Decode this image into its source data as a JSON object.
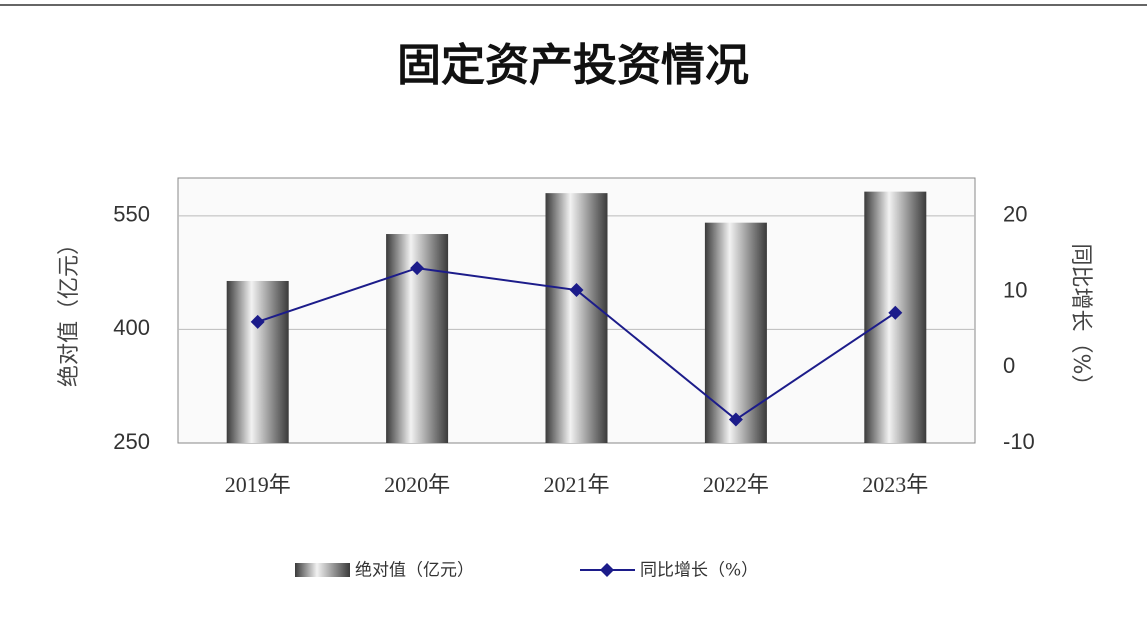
{
  "chart_data": {
    "type": "bar-line",
    "title": "固定资产投资情况",
    "ylabel": "绝对值（亿元）",
    "y2label": "同比增长（%）",
    "categories": [
      "2019年",
      "2020年",
      "2021年",
      "2022年",
      "2023年"
    ],
    "series": [
      {
        "name": "绝对值（亿元）",
        "type": "bar",
        "color": "#3a3a3a",
        "values": [
          464,
          526,
          580,
          541,
          582
        ]
      },
      {
        "name": "同比增长（%）",
        "type": "line",
        "axis": "y2",
        "color": "#1c1c8a",
        "values": [
          6,
          13.1,
          10.2,
          -6.9,
          7.2
        ]
      }
    ],
    "ylim": [
      250,
      600
    ],
    "yticks": [
      250,
      400,
      550
    ],
    "y2lim": [
      -10,
      25
    ],
    "y2ticks": [
      -10,
      0,
      10,
      20
    ],
    "grid": true
  }
}
